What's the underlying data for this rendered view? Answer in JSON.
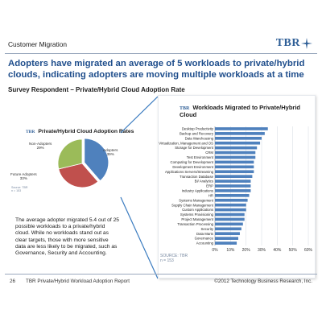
{
  "slide": {
    "section_title": "Customer Migration",
    "logo_text": "TBR",
    "headline": "Adopters have migrated an average of 5 workloads to private/hybrid clouds, indicating adopters are moving multiple workloads at a time",
    "subtitle": "Survey Respondent – Private/Hybrid Cloud Adoption Rate",
    "note": "The average adopter migrated 5.4 out of 25 possible workloads to a private/hybrid cloud. While no workloads stand out as clear targets, those with more sensitive data are less likely to be migrated, such as Governance, Security and Accounting.",
    "footer": {
      "page_number": "26",
      "report_title": "TBR Private/Hybrid Workload Adoption Report",
      "copyright": "©2012 Technology Business Research, Inc."
    },
    "accent_color": "#1f4e8c",
    "callout_line_color": "#3b7cc0"
  },
  "chart_data": [
    {
      "type": "pie",
      "title": "Private/Hybrid Cloud Adoption Rates",
      "logo": "TBR",
      "source": "Source: TBR\nn = 153",
      "categories": [
        "Adopters",
        "Future Adopters",
        "Non-Adopters"
      ],
      "values": [
        39,
        33,
        29
      ],
      "labels": [
        "39%",
        "33%",
        "29%"
      ],
      "colors": [
        "#4f81bd",
        "#c0504d",
        "#9bbb59"
      ]
    },
    {
      "type": "bar",
      "orientation": "horizontal",
      "title": "Workloads Migrated to Private/Hybrid Cloud",
      "logo": "TBR",
      "source": "SOURCE: TBR\nn = 153",
      "categories": [
        "Desktop Productivity",
        "Backup and Recovery",
        "Data Warehousing",
        "Virtualization, Management and OS",
        "Storage for Development",
        "CRM",
        "Test Environment",
        "Computing for Development",
        "Development Environment",
        "Applications Servers/Streaming",
        "Transaction Database",
        "BI/ Analytics",
        "ERP",
        "Industry Applications",
        "HR",
        "Systems Management",
        "Supply Chain Management",
        "Custom Applications",
        "Systems Provisioning",
        "Project Management",
        "Transaction Processing",
        "Security",
        "Data Marts",
        "Governance",
        "Accounting"
      ],
      "values": [
        34,
        32,
        30,
        29,
        27,
        26,
        26,
        25,
        25,
        25,
        24,
        23,
        23,
        23,
        22,
        21,
        20,
        20,
        19,
        19,
        18,
        17,
        16,
        15,
        14
      ],
      "xlim": [
        0,
        60
      ],
      "x_ticks": [
        "0%",
        "10%",
        "20%",
        "30%",
        "40%",
        "50%",
        "60%"
      ],
      "grid": true,
      "color": "#4f81bd"
    }
  ]
}
